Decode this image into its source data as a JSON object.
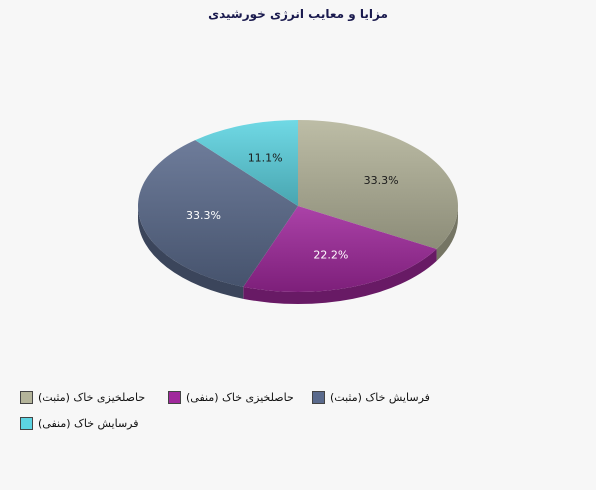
{
  "chart_data": {
    "type": "pie",
    "title": "مزایا و معایب انرژی خورشیدی",
    "slices": [
      {
        "label": "(حاصلخیزی خاک (مثبت",
        "value": 33.3,
        "display": "33.3%",
        "color": "#b4b49a"
      },
      {
        "label": "(حاصلخیزی خاک (منفی",
        "value": 22.2,
        "display": "22.2%",
        "color": "#a0289c"
      },
      {
        "label": "(فرسایش خاک (مثبت",
        "value": 33.3,
        "display": "33.3%",
        "color": "#5a6a8c"
      },
      {
        "label": "(فرسایش خاک (منفی",
        "value": 11.1,
        "display": "11.1%",
        "color": "#5cd4e2"
      }
    ],
    "legend_position": "bottom-left",
    "style": "3d"
  }
}
